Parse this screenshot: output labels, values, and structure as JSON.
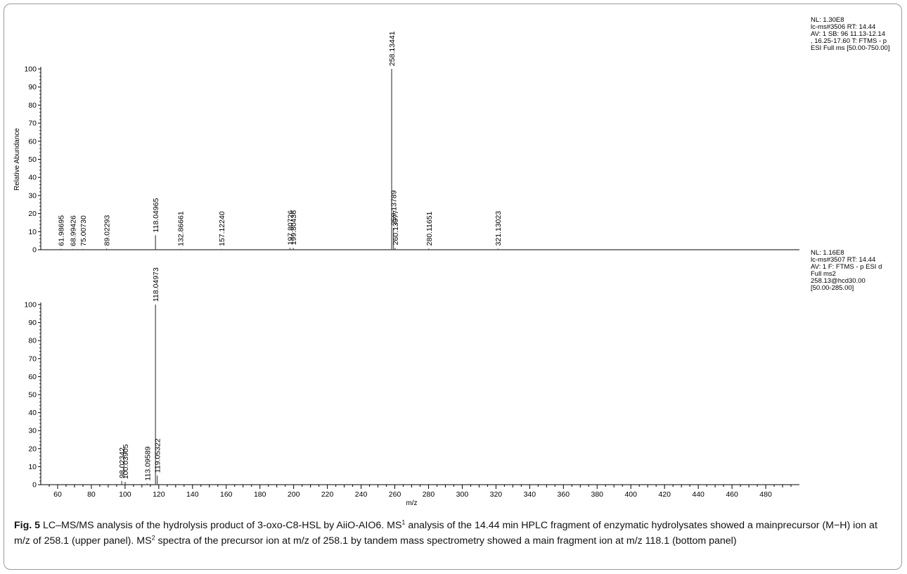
{
  "chart_data": [
    {
      "type": "bar",
      "panel": "upper",
      "info": [
        "NL: 1.30E8",
        "lc-ms#3506  RT: 14.44",
        "AV: 1 SB: 96  11.13-12.14",
        ", 16.25-17.60 T: FTMS - p",
        "ESI Full ms [50.00-750.00]"
      ],
      "ylabel": "Relative Abundance",
      "xlim": [
        50,
        500
      ],
      "ylim": [
        0,
        100
      ],
      "y_ticks": [
        0,
        10,
        20,
        30,
        40,
        50,
        60,
        70,
        80,
        90,
        100
      ],
      "peaks": [
        {
          "mz": 61.98695,
          "label": "61.98695",
          "intensity": 0.5
        },
        {
          "mz": 68.99426,
          "label": "68.99426",
          "intensity": 0.4
        },
        {
          "mz": 75.0073,
          "label": "75.00730",
          "intensity": 0.4
        },
        {
          "mz": 89.02293,
          "label": "89.02293",
          "intensity": 0.6
        },
        {
          "mz": 118.04965,
          "label": "118.04965",
          "intensity": 8
        },
        {
          "mz": 132.86661,
          "label": "132.86661",
          "intensity": 0.4
        },
        {
          "mz": 157.1224,
          "label": "157.12240",
          "intensity": 0.4
        },
        {
          "mz": 197.80726,
          "label": "197.80726",
          "intensity": 1
        },
        {
          "mz": 199.80436,
          "label": "199.80436",
          "intensity": 1
        },
        {
          "mz": 258.13441,
          "label": "258.13441",
          "intensity": 100
        },
        {
          "mz": 259.13789,
          "label": "259.13789",
          "intensity": 12
        },
        {
          "mz": 260.13977,
          "label": "260.13977",
          "intensity": 1
        },
        {
          "mz": 280.11651,
          "label": "280.11651",
          "intensity": 0.6
        },
        {
          "mz": 321.13023,
          "label": "321.13023",
          "intensity": 0.6
        }
      ]
    },
    {
      "type": "bar",
      "panel": "lower",
      "info": [
        "NL: 1.16E8",
        "lc-ms#3507  RT: 14.44",
        "AV: 1 F: FTMS - p ESI d",
        "Full ms2",
        "258.13@hcd30.00",
        "[50.00-285.00]"
      ],
      "ylabel": "Relative Abundance",
      "xlabel": "m/z",
      "xlim": [
        50,
        500
      ],
      "ylim": [
        0,
        100
      ],
      "y_ticks": [
        0,
        10,
        20,
        30,
        40,
        50,
        60,
        70,
        80,
        90,
        100
      ],
      "x_ticks": [
        60,
        80,
        100,
        120,
        140,
        160,
        180,
        200,
        220,
        240,
        260,
        280,
        300,
        320,
        340,
        360,
        380,
        400,
        420,
        440,
        460,
        480
      ],
      "peaks": [
        {
          "mz": 98.02342,
          "label": "98.02342",
          "intensity": 2
        },
        {
          "mz": 100.03905,
          "label": "100.03905",
          "intensity": 1.5
        },
        {
          "mz": 113.09589,
          "label": "113.09589",
          "intensity": 0.6
        },
        {
          "mz": 118.04973,
          "label": "118.04973",
          "intensity": 100
        },
        {
          "mz": 119.05322,
          "label": "119.05322",
          "intensity": 5
        }
      ]
    }
  ],
  "caption": {
    "fig_label": "Fig. 5",
    "part1": "  LC–MS/MS analysis of the hydrolysis product of 3-oxo-C8-HSL by AiiO-AIO6. MS",
    "sup1": "1",
    "part2": " analysis of the 14.44 min HPLC fragment of enzymatic hydrolysates showed a mainprecursor (M−H) ion at m/z of 258.1 (upper panel). MS",
    "sup2": "2",
    "part3": " spectra of the precursor ion at m/z of 258.1 by tandem mass spectrometry showed a main fragment ion at m/z 118.1 (bottom panel)"
  },
  "colors": {
    "axis": "#000000",
    "peak": "#555555",
    "border": "#9a9a9a"
  }
}
